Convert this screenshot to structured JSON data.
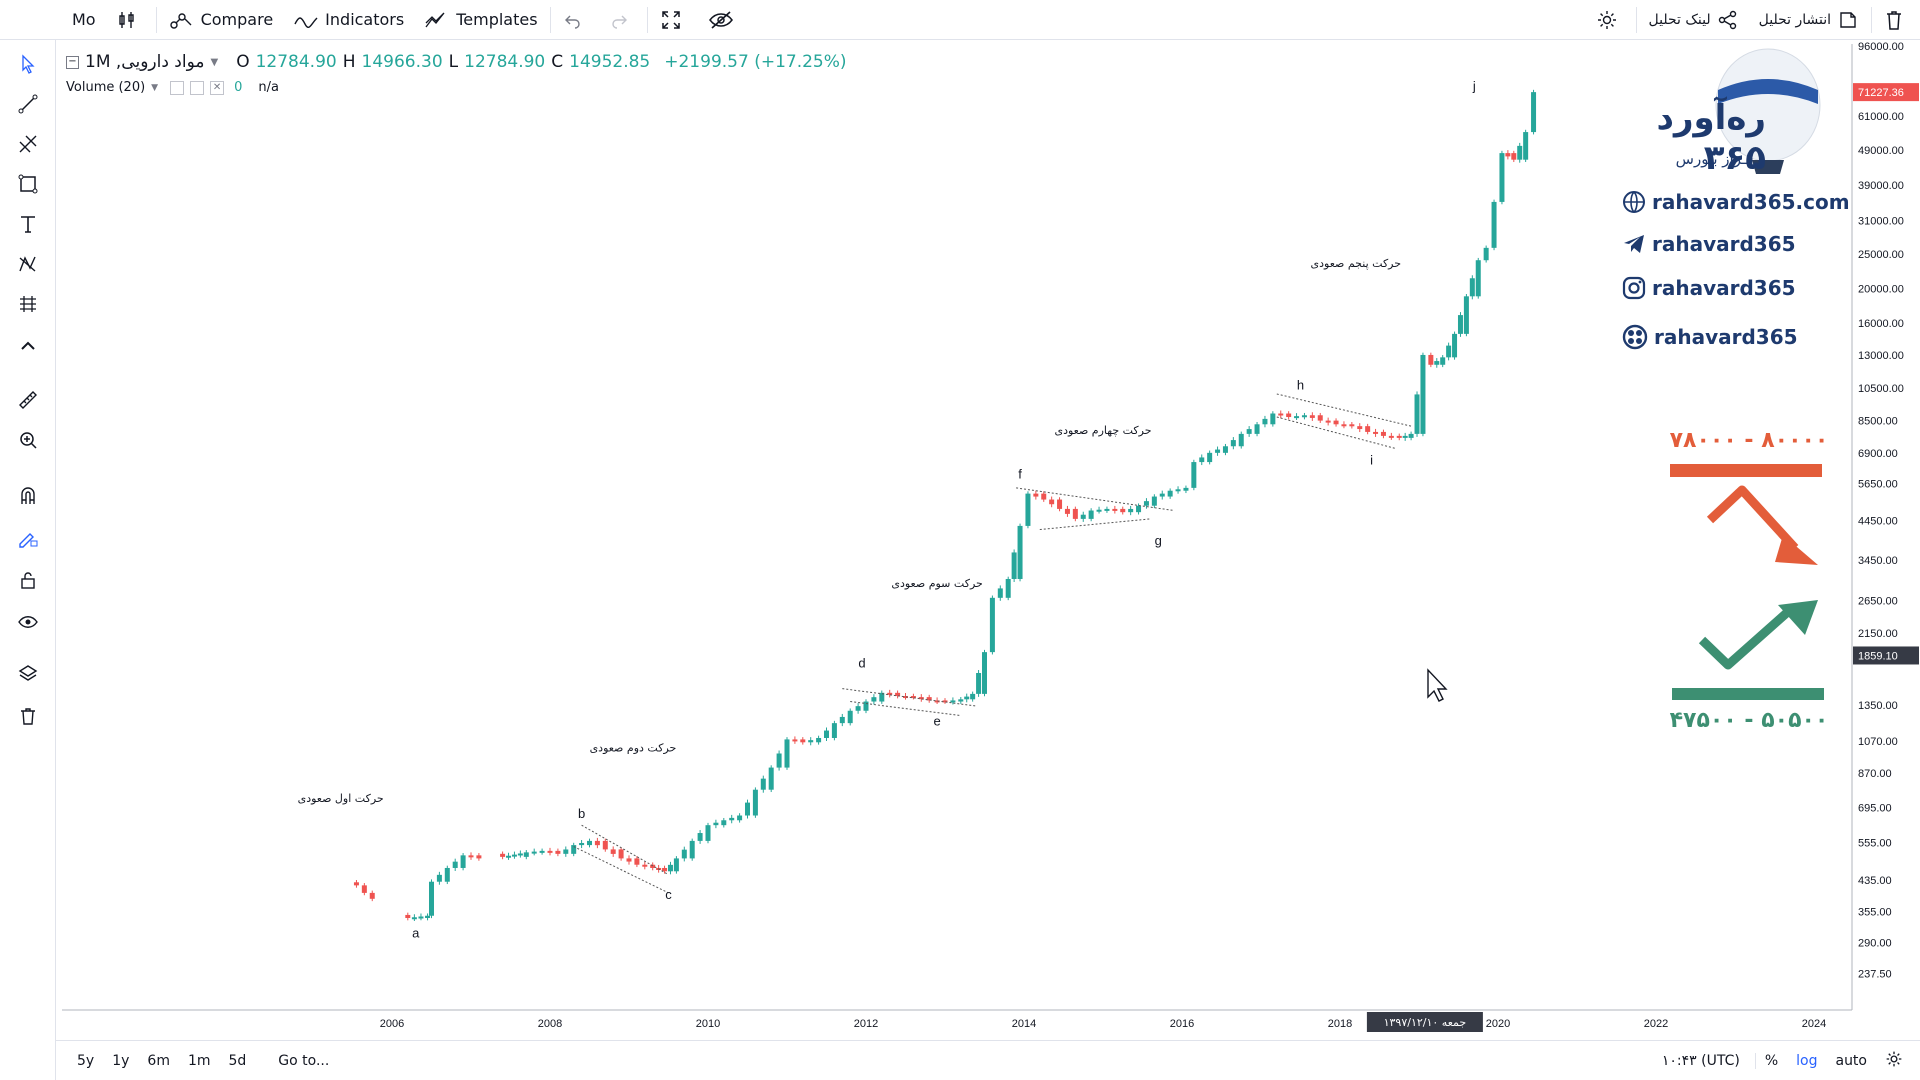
{
  "toolbar": {
    "interval": "Mo",
    "compare": "Compare",
    "indicators": "Indicators",
    "templates": "Templates",
    "publish": "انتشار تحلیل",
    "share_link": "لینک تحلیل"
  },
  "legend": {
    "symbol": "مواد دارویی, 1M",
    "o_label": "O",
    "o": "12784.90",
    "h_label": "H",
    "h": "14966.30",
    "l_label": "L",
    "l": "12784.90",
    "c_label": "C",
    "c": "14952.85",
    "change": "+2199.57 (+17.25%)",
    "volume_label": "Volume (20)",
    "volume_val": "0",
    "volume_na": "n/a"
  },
  "brand": {
    "logo_title": "ره‌آورد ۳۶۵",
    "logo_sub": "برفـراز بـورس",
    "website": "rahavard365.com",
    "telegram": "rahavard365",
    "instagram": "rahavard365",
    "aparat": "rahavard365"
  },
  "targets": {
    "upper_range": "۷۸۰۰۰ - ۸۰۰۰۰",
    "lower_range": "۴۷۵۰۰ - ۵۰۵۰۰",
    "upper_color": "#e35d3a",
    "lower_color": "#3d8f72"
  },
  "bottombar": {
    "ranges": [
      "5y",
      "1y",
      "6m",
      "1m",
      "5d"
    ],
    "goto": "Go to...",
    "time": "۱۰:۴۳ (UTC)",
    "percent": "%",
    "log": "log",
    "auto": "auto"
  },
  "chart_data": {
    "type": "candlestick",
    "title": "مواد دارویی, 1M",
    "scale": "log",
    "ylim": [
      200,
      96000
    ],
    "x_ticks": [
      "2006",
      "2008",
      "2010",
      "2012",
      "2014",
      "2016",
      "2018",
      "2020",
      "2022",
      "2024"
    ],
    "crosshair_date": "جمعه ۱۳۹۷/۱۲/۱۰",
    "y_ticks": [
      "96000.00",
      "61000.00",
      "49000.00",
      "39000.00",
      "31000.00",
      "25000.00",
      "20000.00",
      "16000.00",
      "13000.00",
      "10500.00",
      "8500.00",
      "6900.00",
      "5650.00",
      "4450.00",
      "3450.00",
      "2650.00",
      "2150.00",
      "1350.00",
      "1070.00",
      "870.00",
      "695.00",
      "555.00",
      "435.00",
      "355.00",
      "290.00",
      "237.50"
    ],
    "last_price_label": "71227.36",
    "crosshair_price_label": "1859.10",
    "up_color": "#26a69a",
    "down_color": "#ef5350",
    "wave_labels": [
      "a",
      "b",
      "c",
      "d",
      "e",
      "f",
      "g",
      "h",
      "i",
      "j"
    ],
    "annotations": [
      "حرکت اول صعودی",
      "حرکت دوم صعودی",
      "حرکت سوم صعودی",
      "حرکت چهارم صعودی",
      "حرکت پنجم صعودی"
    ],
    "series": [
      {
        "name": "close_path",
        "points": [
          [
            2005.55,
            420
          ],
          [
            2005.65,
            400
          ],
          [
            2005.75,
            385
          ],
          [
            2006.2,
            340
          ],
          [
            2006.45,
            345
          ],
          [
            2006.5,
            430
          ],
          [
            2006.7,
            470
          ],
          [
            2006.9,
            510
          ],
          [
            2007.1,
            500
          ],
          [
            2007.4,
            505
          ],
          [
            2007.7,
            520
          ],
          [
            2007.9,
            525
          ],
          [
            2008.1,
            515
          ],
          [
            2008.3,
            545
          ],
          [
            2008.5,
            560
          ],
          [
            2008.7,
            530
          ],
          [
            2008.9,
            500
          ],
          [
            2009.1,
            480
          ],
          [
            2009.3,
            470
          ],
          [
            2009.45,
            460
          ],
          [
            2009.6,
            500
          ],
          [
            2009.8,
            560
          ],
          [
            2010.0,
            620
          ],
          [
            2010.2,
            640
          ],
          [
            2010.4,
            660
          ],
          [
            2010.6,
            780
          ],
          [
            2010.8,
            900
          ],
          [
            2011.0,
            1080
          ],
          [
            2011.2,
            1060
          ],
          [
            2011.4,
            1090
          ],
          [
            2011.6,
            1200
          ],
          [
            2011.8,
            1300
          ],
          [
            2012.0,
            1380
          ],
          [
            2012.2,
            1460
          ],
          [
            2012.4,
            1430
          ],
          [
            2012.6,
            1420
          ],
          [
            2012.8,
            1390
          ],
          [
            2013.0,
            1380
          ],
          [
            2013.2,
            1400
          ],
          [
            2013.35,
            1450
          ],
          [
            2013.5,
            1900
          ],
          [
            2013.6,
            2700
          ],
          [
            2013.8,
            3050
          ],
          [
            2013.95,
            4300
          ],
          [
            2014.05,
            5300
          ],
          [
            2014.25,
            5100
          ],
          [
            2014.45,
            4800
          ],
          [
            2014.65,
            4500
          ],
          [
            2014.85,
            4750
          ],
          [
            2015.05,
            4800
          ],
          [
            2015.25,
            4700
          ],
          [
            2015.45,
            4900
          ],
          [
            2015.65,
            5200
          ],
          [
            2015.85,
            5400
          ],
          [
            2016.05,
            5500
          ],
          [
            2016.15,
            6500
          ],
          [
            2016.35,
            6900
          ],
          [
            2016.55,
            7200
          ],
          [
            2016.75,
            7800
          ],
          [
            2016.95,
            8300
          ],
          [
            2017.15,
            8900
          ],
          [
            2017.35,
            8700
          ],
          [
            2017.55,
            8800
          ],
          [
            2017.75,
            8500
          ],
          [
            2017.95,
            8300
          ],
          [
            2018.15,
            8200
          ],
          [
            2018.35,
            7900
          ],
          [
            2018.55,
            7700
          ],
          [
            2018.75,
            7600
          ],
          [
            2018.9,
            7800
          ],
          [
            2019.05,
            13000
          ],
          [
            2019.15,
            12200
          ],
          [
            2019.3,
            12800
          ],
          [
            2019.45,
            14900
          ],
          [
            2019.6,
            19000
          ],
          [
            2019.75,
            24000
          ],
          [
            2019.85,
            26000
          ],
          [
            2019.95,
            35000
          ],
          [
            2020.05,
            48000
          ],
          [
            2020.2,
            46000
          ],
          [
            2020.35,
            55000
          ],
          [
            2020.45,
            71227
          ]
        ]
      }
    ]
  }
}
